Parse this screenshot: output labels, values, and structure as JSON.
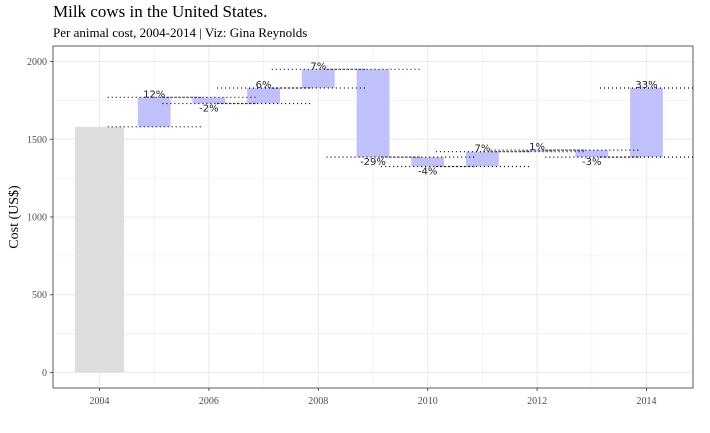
{
  "chart_data": {
    "type": "bar",
    "subtype": "waterfall",
    "title": "Milk cows in the United States.",
    "subtitle": "Per animal cost, 2004-2014 | Viz: Gina Reynolds",
    "xlabel": "",
    "ylabel": "Cost (US$)",
    "xlim": [
      2003.15,
      2014.85
    ],
    "ylim": [
      -100,
      2100
    ],
    "x_ticks": [
      2004,
      2006,
      2008,
      2010,
      2012,
      2014
    ],
    "y_ticks": [
      0,
      500,
      1000,
      1500,
      2000
    ],
    "grid": true,
    "base": {
      "year": 2004,
      "value": 1580
    },
    "steps": [
      {
        "year": 2005,
        "start": 1580,
        "end": 1770,
        "label": "12%"
      },
      {
        "year": 2006,
        "start": 1770,
        "end": 1730,
        "label": "-2%"
      },
      {
        "year": 2007,
        "start": 1730,
        "end": 1830,
        "label": "6%"
      },
      {
        "year": 2008,
        "start": 1830,
        "end": 1950,
        "label": "7%"
      },
      {
        "year": 2009,
        "start": 1950,
        "end": 1385,
        "label": "-29%"
      },
      {
        "year": 2010,
        "start": 1385,
        "end": 1325,
        "label": "-4%"
      },
      {
        "year": 2011,
        "start": 1325,
        "end": 1420,
        "label": "7%"
      },
      {
        "year": 2012,
        "start": 1420,
        "end": 1430,
        "label": "1%"
      },
      {
        "year": 2013,
        "start": 1430,
        "end": 1385,
        "label": "-3%"
      },
      {
        "year": 2014,
        "start": 1385,
        "end": 1830,
        "label": "33%"
      }
    ],
    "colors": {
      "base": "#dedede",
      "step": "#c0c0fb",
      "connector": "#000000",
      "grid": "#ebebeb",
      "panel_border": "#333333"
    }
  }
}
